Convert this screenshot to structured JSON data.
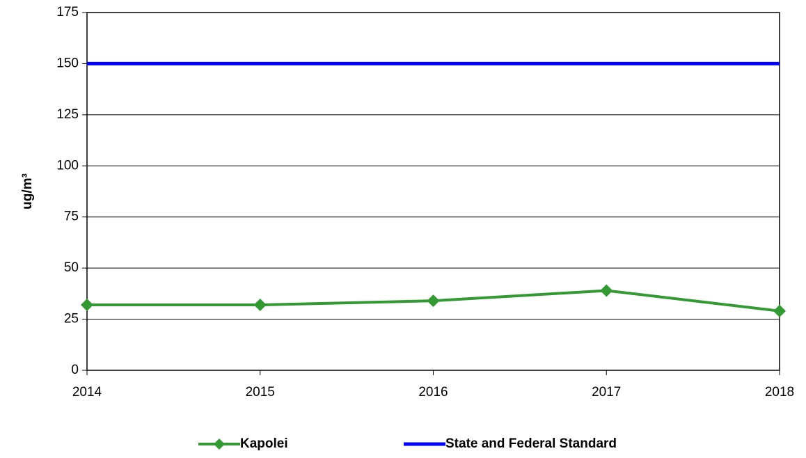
{
  "chart_data": {
    "type": "line",
    "x": [
      2014,
      2015,
      2016,
      2017,
      2018
    ],
    "xlim": [
      2014,
      2018
    ],
    "xticks": [
      2014,
      2015,
      2016,
      2017,
      2018
    ],
    "ylim": [
      0,
      175
    ],
    "yticks": [
      0,
      25,
      50,
      75,
      100,
      125,
      150,
      175
    ],
    "ylabel": "ug/m³",
    "grid": true,
    "legend": "bottom",
    "series": [
      {
        "name": "Kapolei",
        "color": "#339933",
        "marker": "diamond",
        "values": [
          32,
          32,
          34,
          39,
          29
        ]
      },
      {
        "name": "State and Federal Standard",
        "color": "#0000ff",
        "values": [
          150,
          150,
          150,
          150,
          150
        ]
      }
    ]
  }
}
